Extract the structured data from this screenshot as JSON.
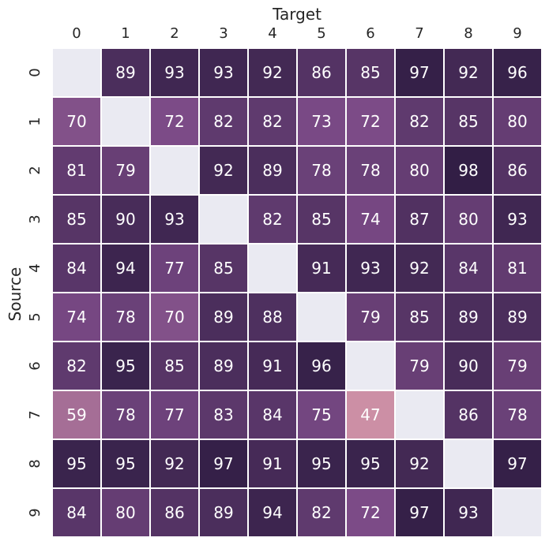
{
  "chart_data": {
    "type": "heatmap",
    "xlabel": "Target",
    "ylabel": "Source",
    "x_categories": [
      "0",
      "1",
      "2",
      "3",
      "4",
      "5",
      "6",
      "7",
      "8",
      "9"
    ],
    "y_categories": [
      "0",
      "1",
      "2",
      "3",
      "4",
      "5",
      "6",
      "7",
      "8",
      "9"
    ],
    "values": [
      [
        null,
        89,
        93,
        93,
        92,
        86,
        85,
        97,
        92,
        96
      ],
      [
        70,
        null,
        72,
        82,
        82,
        73,
        72,
        82,
        85,
        80
      ],
      [
        81,
        79,
        null,
        92,
        89,
        78,
        78,
        80,
        98,
        86
      ],
      [
        85,
        90,
        93,
        null,
        82,
        85,
        74,
        87,
        80,
        93
      ],
      [
        84,
        94,
        77,
        85,
        null,
        91,
        93,
        92,
        84,
        81
      ],
      [
        74,
        78,
        70,
        89,
        88,
        null,
        79,
        85,
        89,
        89
      ],
      [
        82,
        95,
        85,
        89,
        91,
        96,
        null,
        79,
        90,
        79
      ],
      [
        59,
        78,
        77,
        83,
        84,
        75,
        47,
        null,
        86,
        78
      ],
      [
        95,
        95,
        92,
        97,
        91,
        95,
        95,
        92,
        null,
        97
      ],
      [
        84,
        80,
        86,
        89,
        94,
        82,
        72,
        97,
        93,
        null
      ]
    ],
    "x_axis_position": "top",
    "colorbar": false,
    "grid": false,
    "colors": {
      "low": "#d294a7",
      "mid": "#7a4a86",
      "high": "#2c1b40",
      "missing": "#eaeaf2",
      "cell_border": "#ffffff",
      "text": "#ffffff"
    },
    "color_domain": [
      45,
      100
    ]
  }
}
